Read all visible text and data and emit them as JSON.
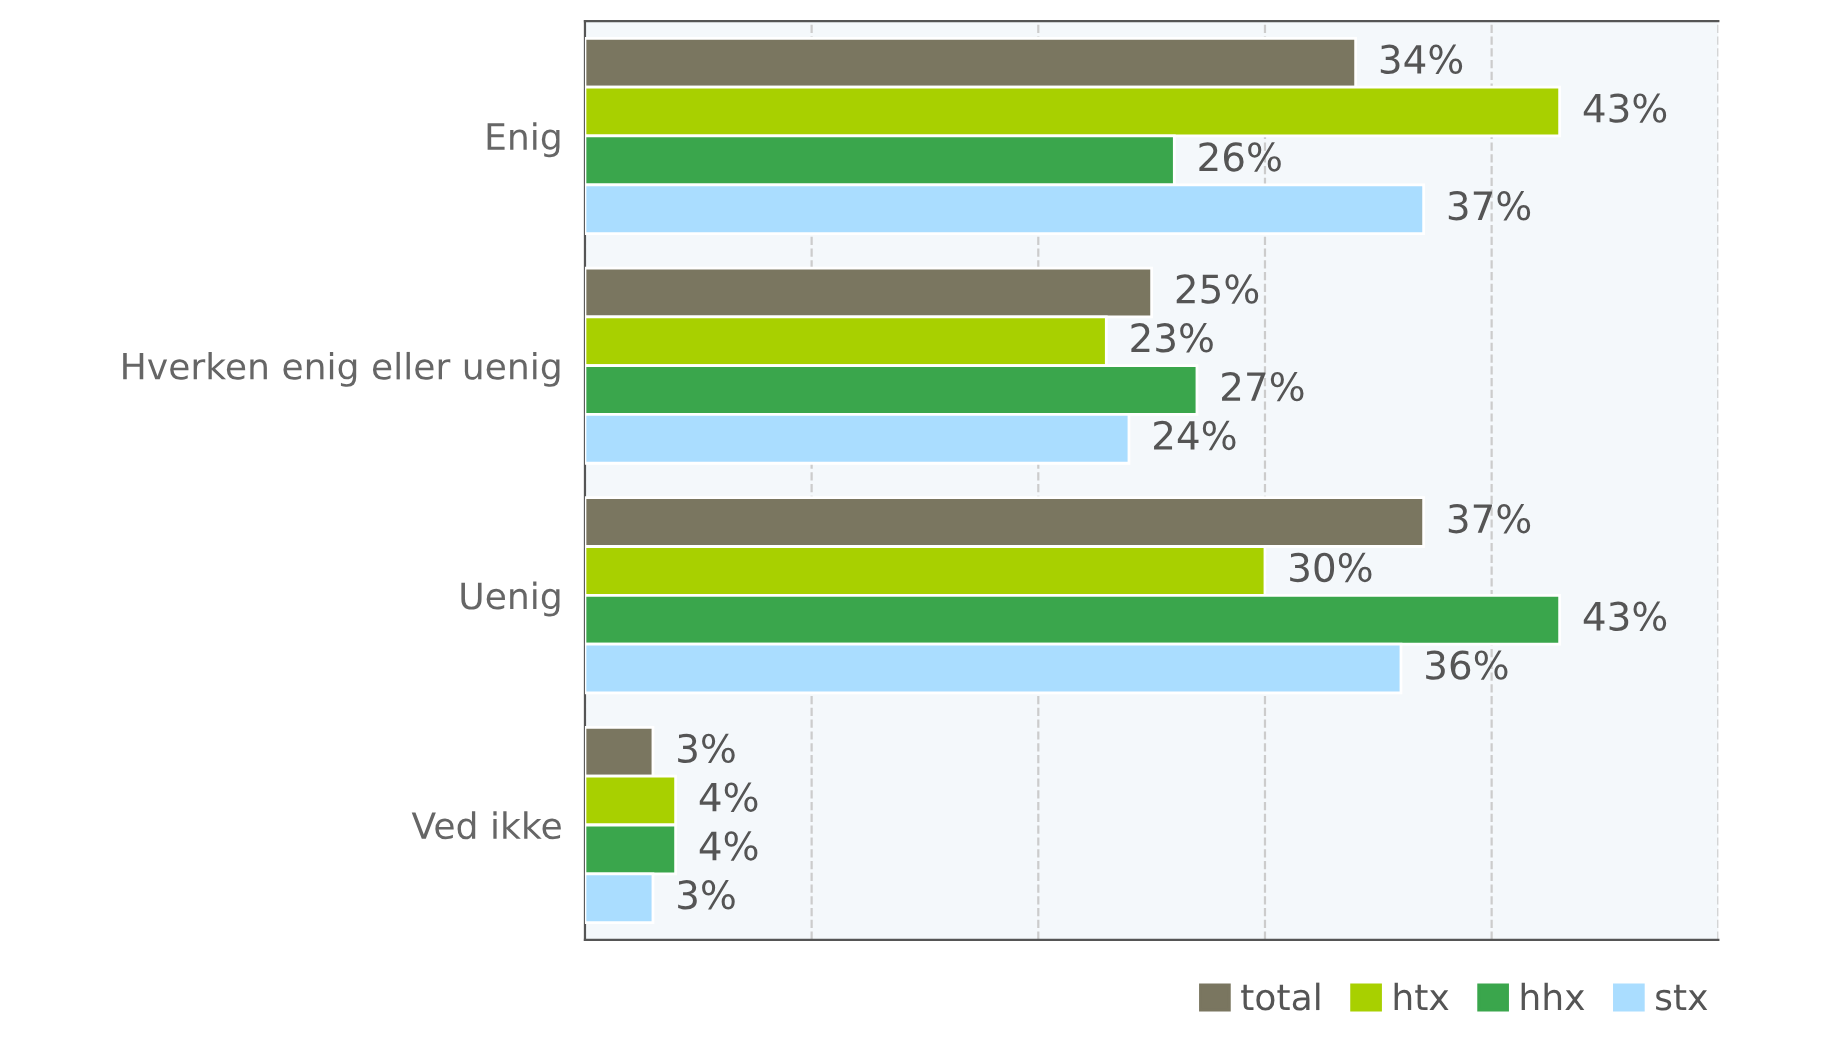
{
  "chart_data": {
    "type": "bar",
    "orientation": "horizontal",
    "categories": [
      "Enig",
      "Hverken enig eller uenig",
      "Uenig",
      "Ved ikke"
    ],
    "series": [
      {
        "name": "total",
        "color": "#7a7660",
        "values": [
          34,
          25,
          37,
          3
        ],
        "value_labels": [
          "34%",
          "25%",
          "37%",
          "3%"
        ]
      },
      {
        "name": "htx",
        "color": "#a8d000",
        "values": [
          43,
          23,
          30,
          4
        ],
        "value_labels": [
          "43%",
          "23%",
          "30%",
          "4%"
        ]
      },
      {
        "name": "hhx",
        "color": "#3aa64c",
        "values": [
          26,
          27,
          43,
          4
        ],
        "value_labels": [
          "26%",
          "27%",
          "43%",
          "4%"
        ]
      },
      {
        "name": "stx",
        "color": "#aaddff",
        "values": [
          37,
          24,
          36,
          3
        ],
        "value_labels": [
          "37%",
          "24%",
          "36%",
          "3%"
        ]
      }
    ],
    "xlim": [
      0,
      50
    ],
    "xticks": [
      {
        "value": 0,
        "label": null
      },
      {
        "value": 10,
        "label": null
      },
      {
        "value": 20,
        "label": null
      },
      {
        "value": 30,
        "label": null
      },
      {
        "value": 40,
        "label": null
      },
      {
        "value": 50,
        "label": null
      }
    ],
    "grid": "x",
    "legend": "bottom right"
  }
}
